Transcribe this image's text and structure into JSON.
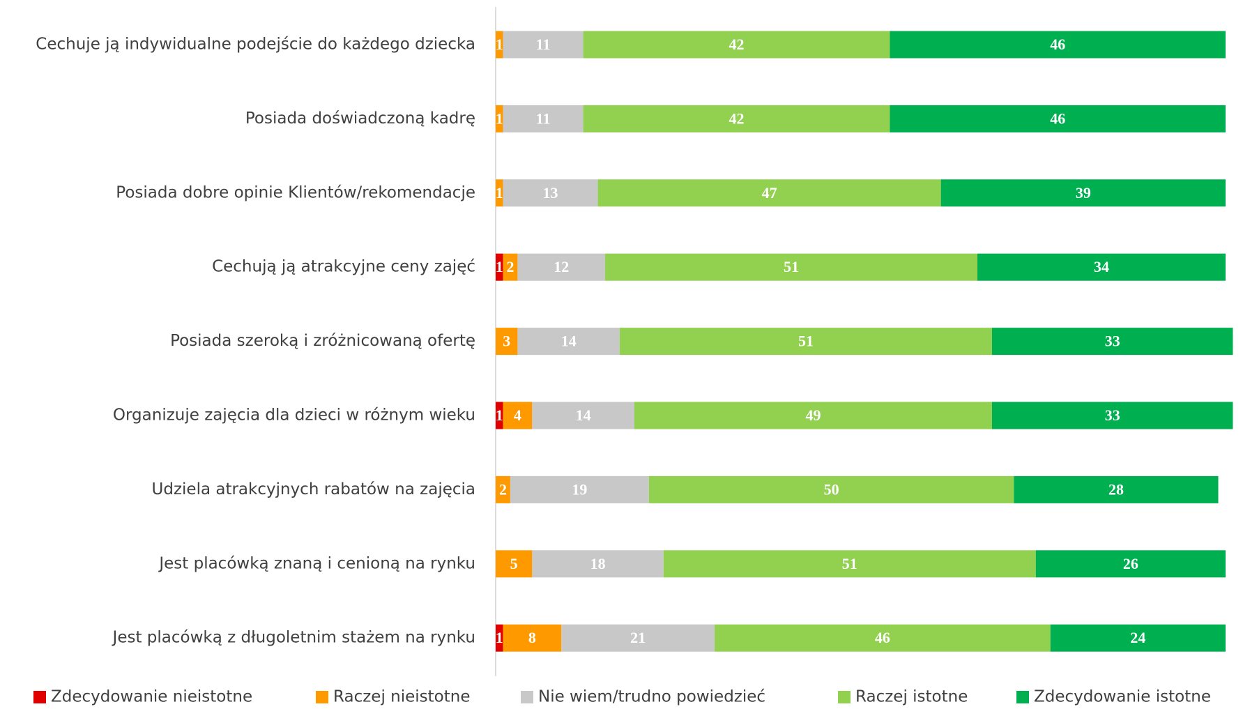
{
  "chart_data": {
    "type": "stacked-bar-horizontal",
    "categories": [
      "Cechuje ją indywidualne podejście do każdego dziecka",
      "Posiada doświadczoną kadrę",
      "Posiada dobre opinie Klientów/rekomendacje",
      "Cechują ją atrakcyjne ceny zajęć",
      "Posiada szeroką i zróżnicowaną ofertę",
      "Organizuje zajęcia dla dzieci w różnym wieku",
      "Udziela atrakcyjnych rabatów na zajęcia",
      "Jest placówką znaną i cenioną na rynku",
      "Jest placówką z długoletnim stażem na rynku"
    ],
    "series": [
      {
        "name": "Zdecydowanie nieistotne",
        "color": "#e00000",
        "values": [
          null,
          null,
          null,
          1,
          null,
          1,
          null,
          null,
          1
        ]
      },
      {
        "name": "Raczej nieistotne",
        "color": "#ff9900",
        "values": [
          1,
          1,
          1,
          2,
          3,
          4,
          2,
          5,
          8
        ]
      },
      {
        "name": "Nie wiem/trudno powiedzieć",
        "color": "#c8c8c8",
        "values": [
          11,
          11,
          13,
          12,
          14,
          14,
          19,
          18,
          21
        ]
      },
      {
        "name": "Raczej istotne",
        "color": "#92d050",
        "values": [
          42,
          42,
          47,
          51,
          51,
          49,
          50,
          51,
          46
        ]
      },
      {
        "name": "Zdecydowanie istotne",
        "color": "#00b050",
        "values": [
          46,
          46,
          39,
          34,
          33,
          33,
          28,
          26,
          24
        ]
      }
    ],
    "xlim": [
      0,
      100
    ],
    "legend": "bottom"
  }
}
